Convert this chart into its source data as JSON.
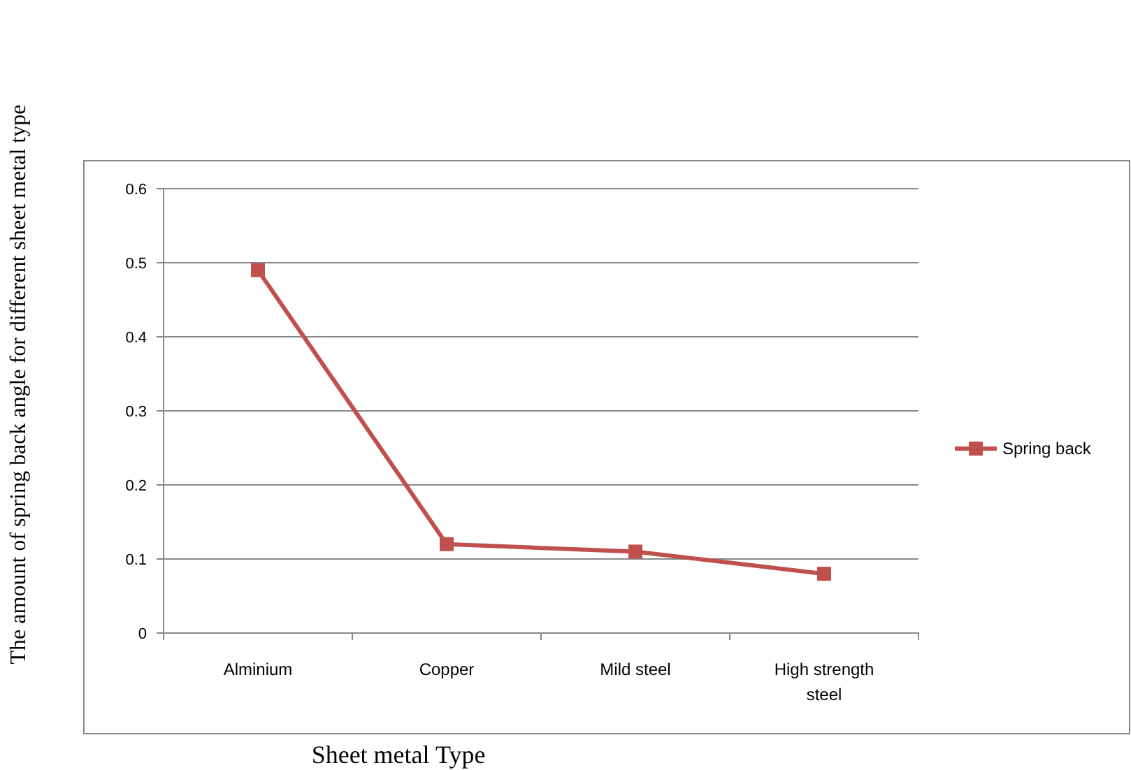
{
  "chart_data": {
    "type": "line",
    "xlabel": "Sheet metal Type",
    "ylabel": "The amount of spring back angle for different sheet metal type",
    "categories": [
      "Alminium",
      "Copper",
      "Mild steel",
      "High strength steel"
    ],
    "series": [
      {
        "name": "Spring back",
        "color": "#c0504d",
        "values": [
          0.49,
          0.12,
          0.11,
          0.08
        ]
      }
    ],
    "ylim": [
      0,
      0.6
    ],
    "yticks": [
      0,
      0.1,
      0.2,
      0.3,
      0.4,
      0.5,
      0.6
    ],
    "grid": "y",
    "legend": "right",
    "marker": "square",
    "line_style": "solid"
  }
}
